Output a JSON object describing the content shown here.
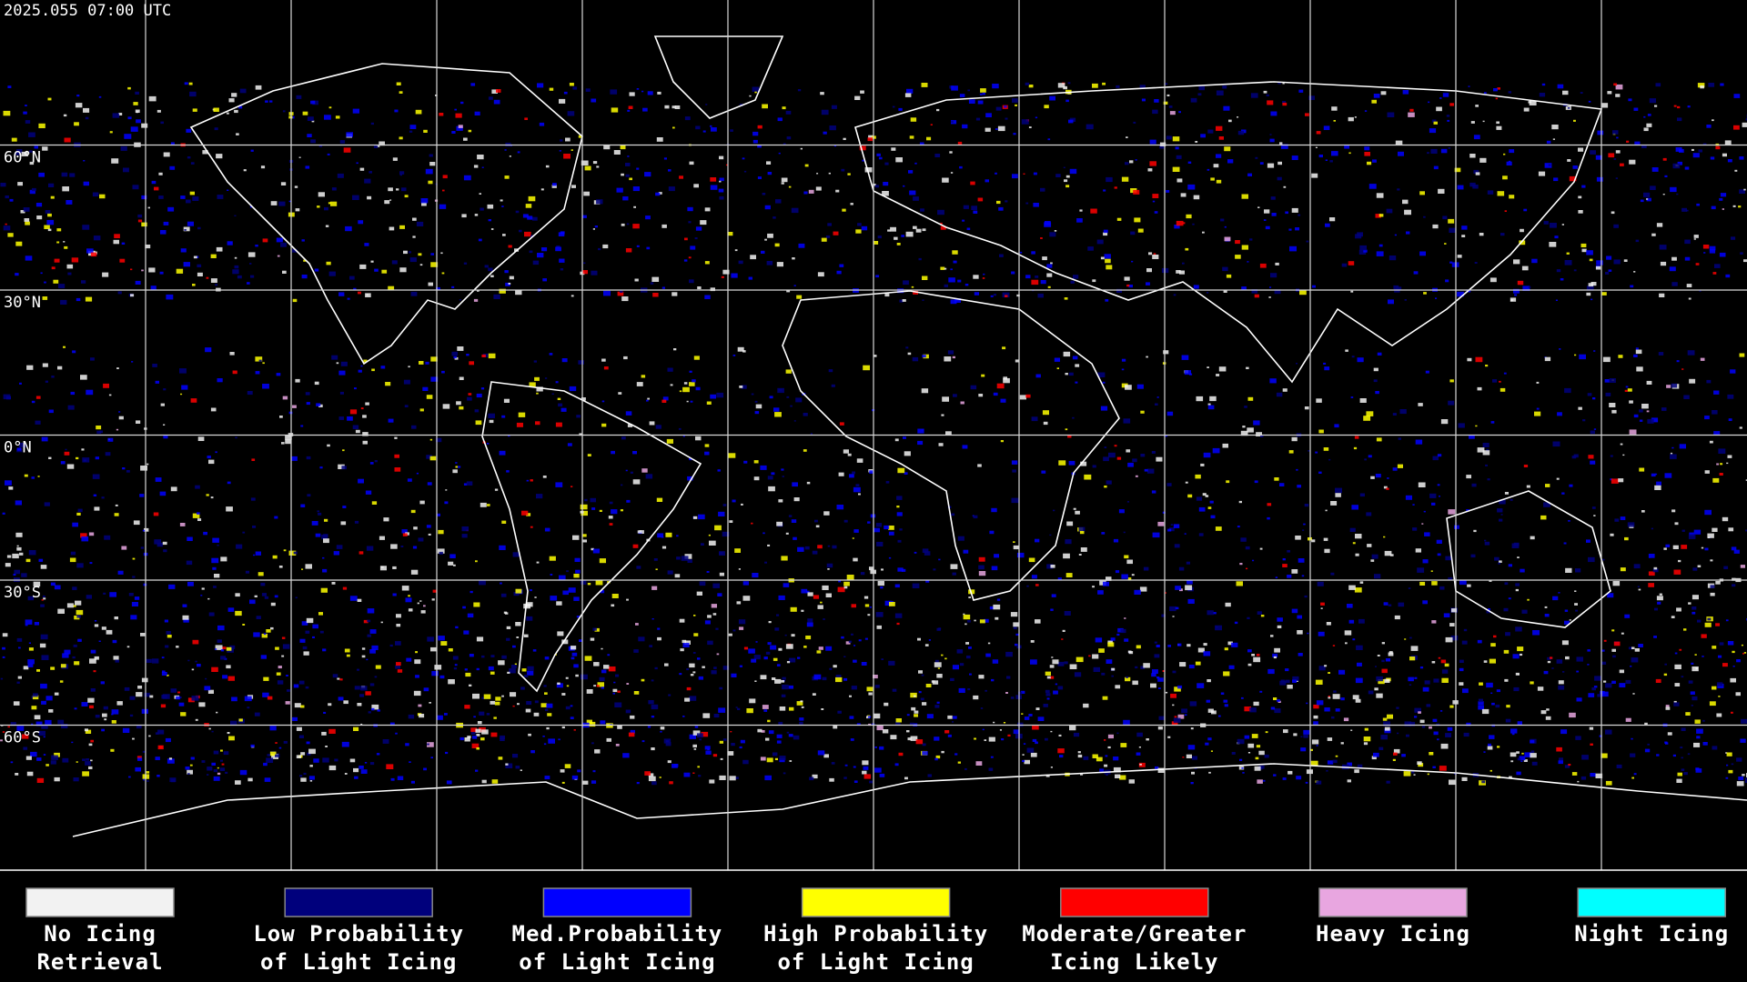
{
  "header": {
    "title": "2025.055 07:00 UTC"
  },
  "map": {
    "latitude_labels": [
      "60°N",
      "30°N",
      "0°N",
      "30°S",
      "60°S"
    ]
  },
  "legend": {
    "items": [
      {
        "label": [
          "No Icing",
          "Retrieval"
        ],
        "color": "#f2f2f2"
      },
      {
        "label": [
          "Low Probability",
          "of Light Icing"
        ],
        "color": "#00007c"
      },
      {
        "label": [
          "Med.Probability",
          "of Light Icing"
        ],
        "color": "#0000ff"
      },
      {
        "label": [
          "High Probability",
          "of Light Icing"
        ],
        "color": "#ffff00"
      },
      {
        "label": [
          "Moderate/Greater",
          "Icing Likely"
        ],
        "color": "#ff0000"
      },
      {
        "label": [
          "Heavy Icing"
        ],
        "color": "#e8a6e0"
      },
      {
        "label": [
          "Night Icing"
        ],
        "color": "#00ffff"
      }
    ]
  }
}
